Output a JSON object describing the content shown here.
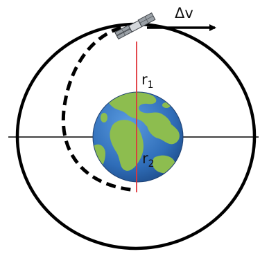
{
  "diagram": {
    "delta_v_label": "Δv",
    "r1_label": {
      "main": "r",
      "sub": "1"
    },
    "r2_label": {
      "main": "r",
      "sub": "2"
    }
  },
  "colors": {
    "orbit": "#000000",
    "radius_line": "#e0353a",
    "ocean": "#3a78c9",
    "land": "#8dbd4f",
    "background": "#ffffff"
  }
}
